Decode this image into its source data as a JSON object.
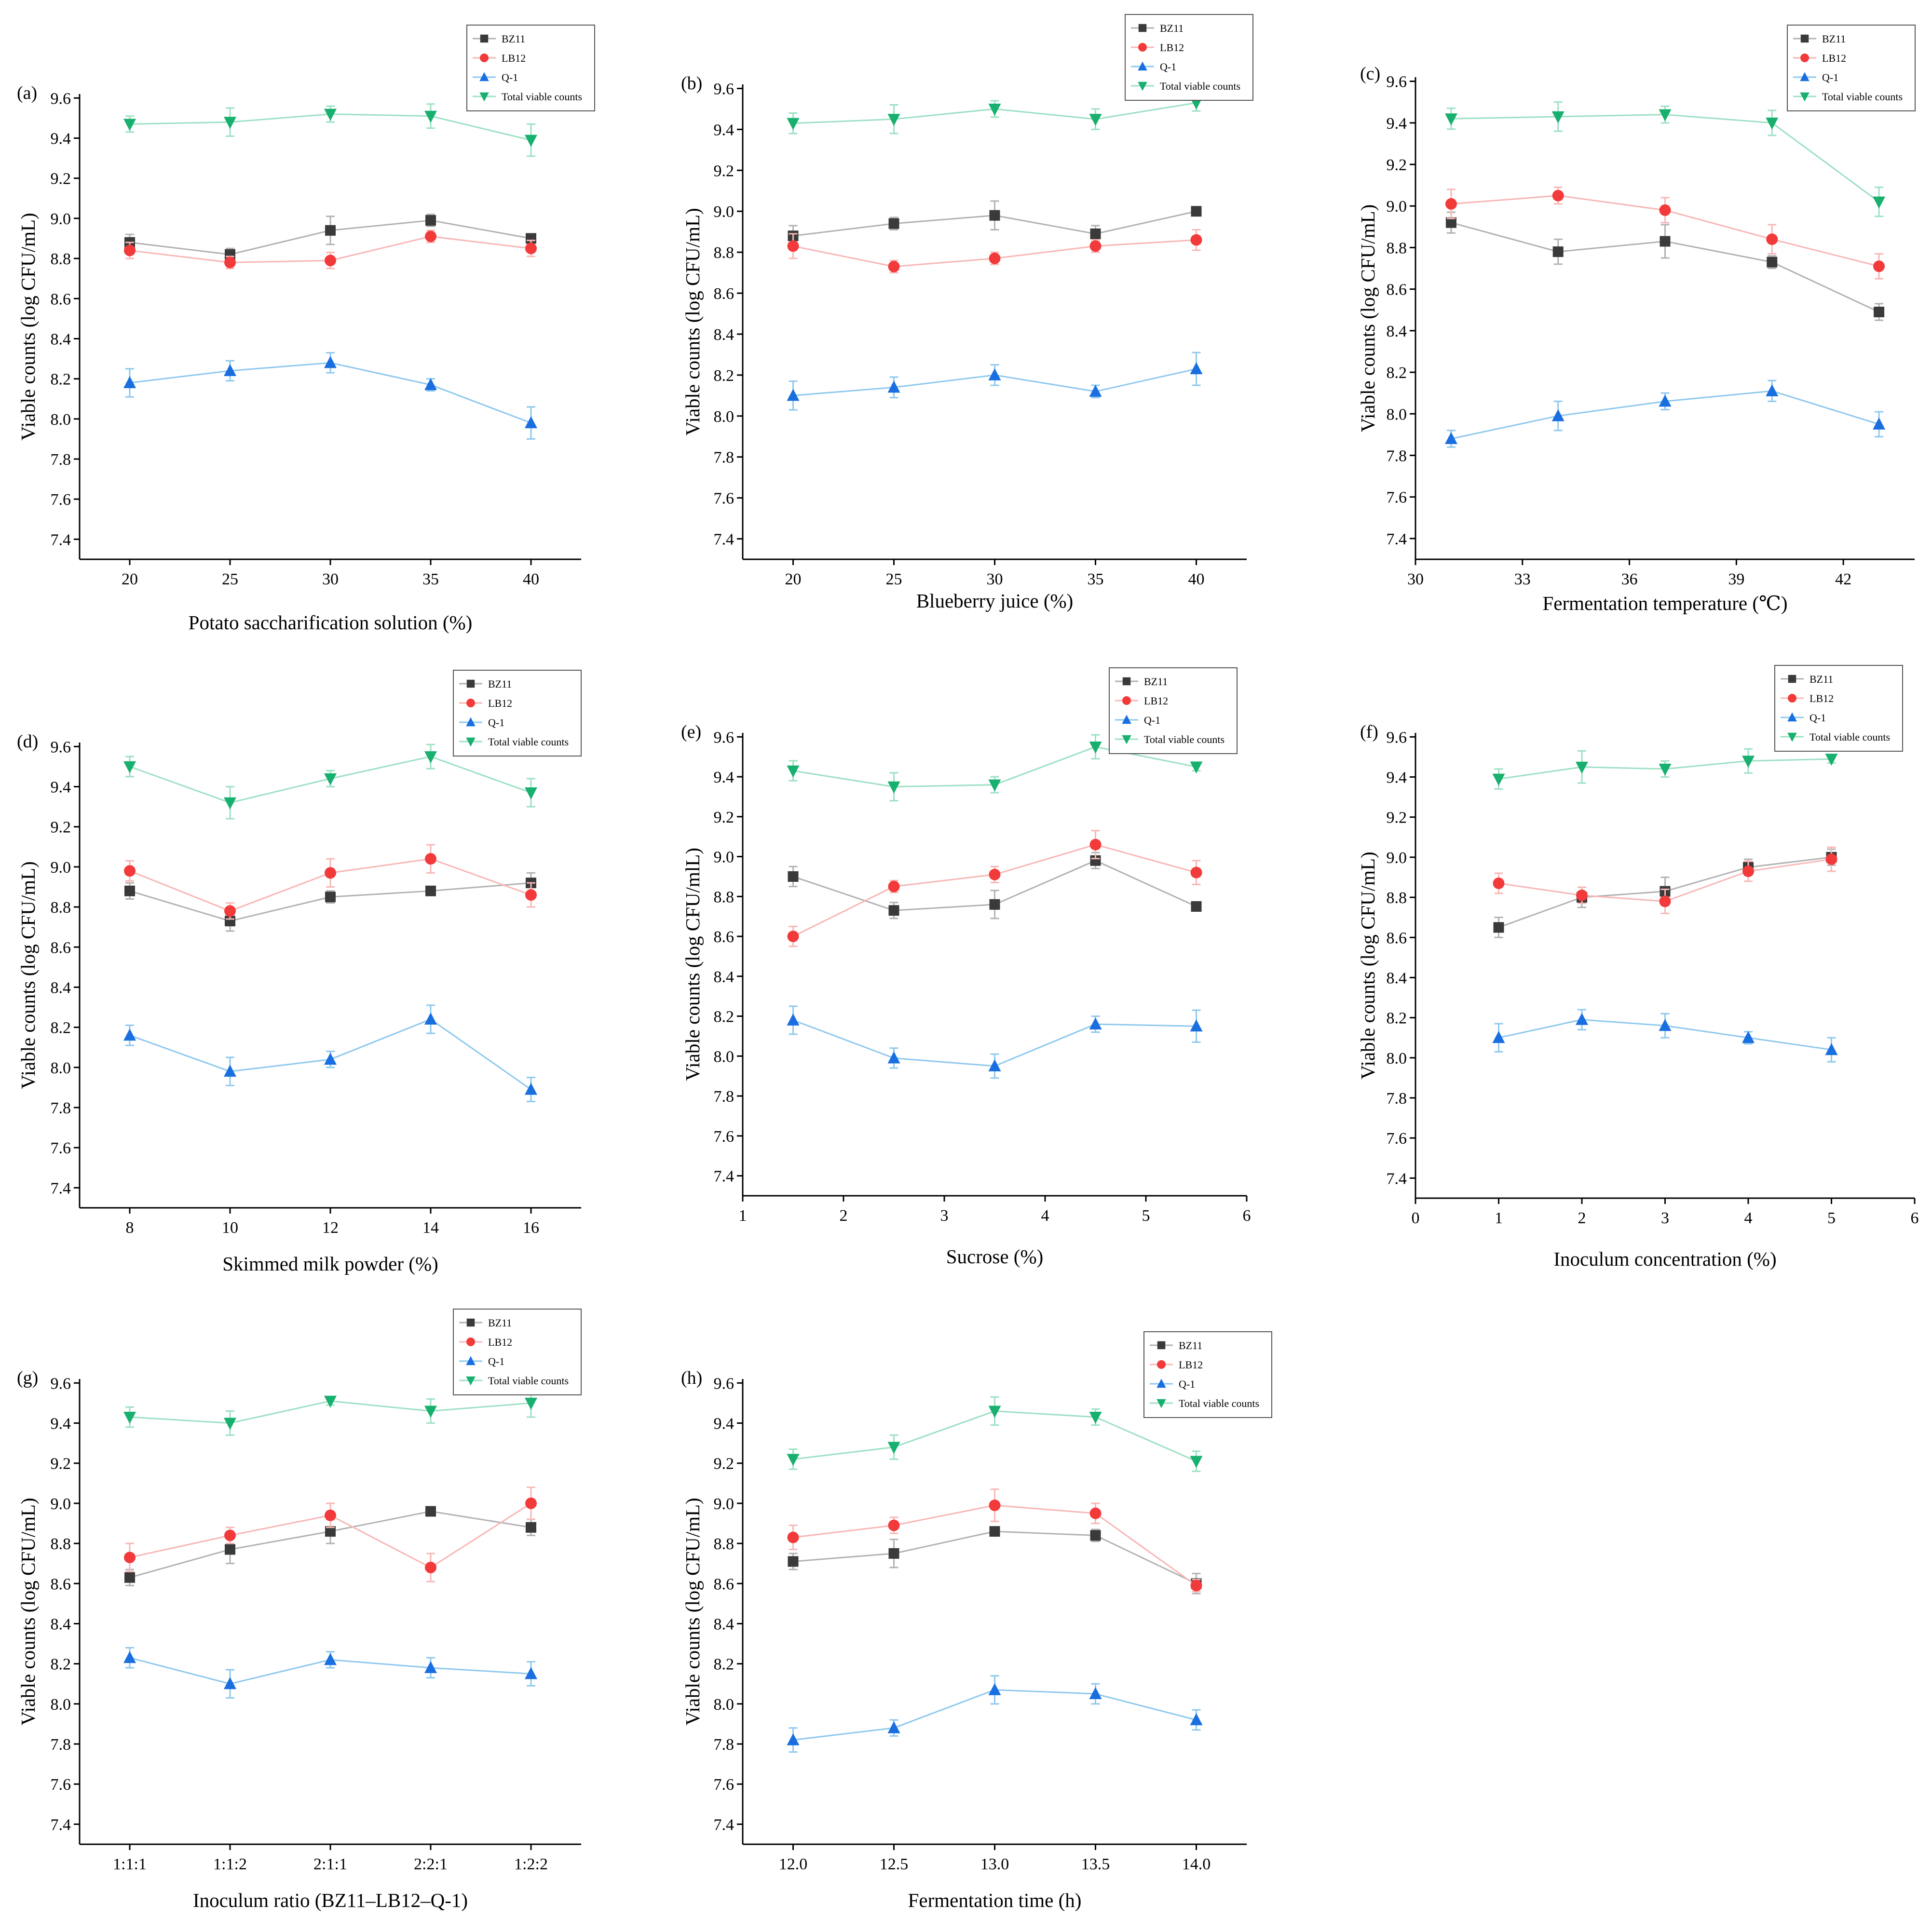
{
  "figure": {
    "title": "",
    "legend_names": [
      "BZ11",
      "LB12",
      "Q-1",
      "Total viable counts"
    ]
  },
  "colors": {
    "BZ11": {
      "line": "#b2b2b2",
      "marker": "#3a3a3a"
    },
    "LB12": {
      "line": "#f8b6b6",
      "marker": "#f23a3a"
    },
    "Q-1": {
      "line": "#8ec8ee",
      "marker": "#1a6fe0"
    },
    "Total viable counts": {
      "line": "#9de0c4",
      "marker": "#18b06e"
    }
  },
  "chart_data": [
    {
      "id": "a",
      "label": "(a)",
      "type": "line",
      "xlabel": "Potato saccharification solution (%)",
      "ylabel": "Viable counts (log CFU/mL)",
      "x_kind": "numeric",
      "x": [
        20,
        25,
        30,
        35,
        40
      ],
      "xlim": [
        17.5,
        42.5
      ],
      "xticks": [
        20,
        25,
        30,
        35,
        40
      ],
      "ylim": [
        7.3,
        9.62
      ],
      "yticks": [
        "7.4",
        "7.6",
        "7.8",
        "8.0",
        "8.2",
        "8.4",
        "8.6",
        "8.8",
        "9.0",
        "9.2",
        "9.4",
        "9.6"
      ],
      "series": [
        {
          "name": "BZ11",
          "marker": "square",
          "values": [
            8.88,
            8.82,
            8.94,
            8.99,
            8.9
          ],
          "errors": [
            0.04,
            0.03,
            0.07,
            0.03,
            0.02
          ]
        },
        {
          "name": "LB12",
          "marker": "circle",
          "values": [
            8.84,
            8.78,
            8.79,
            8.91,
            8.85
          ],
          "errors": [
            0.04,
            0.03,
            0.04,
            0.03,
            0.04
          ]
        },
        {
          "name": "Q-1",
          "marker": "triangle-up",
          "values": [
            8.18,
            8.24,
            8.28,
            8.17,
            7.98
          ],
          "errors": [
            0.07,
            0.05,
            0.05,
            0.03,
            0.08
          ]
        },
        {
          "name": "Total viable counts",
          "marker": "triangle-down",
          "values": [
            9.47,
            9.48,
            9.52,
            9.51,
            9.39
          ],
          "errors": [
            0.04,
            0.07,
            0.04,
            0.06,
            0.08
          ]
        }
      ]
    },
    {
      "id": "b",
      "label": "(b)",
      "type": "line",
      "xlabel": "Blueberry juice (%)",
      "ylabel": "Viable counts (log CFU/mL)",
      "x_kind": "numeric",
      "x": [
        20,
        25,
        30,
        35,
        40
      ],
      "xlim": [
        17.5,
        42.5
      ],
      "xticks": [
        20,
        25,
        30,
        35,
        40
      ],
      "ylim": [
        7.3,
        9.62
      ],
      "yticks": [
        "7.4",
        "7.6",
        "7.8",
        "8.0",
        "8.2",
        "8.4",
        "8.6",
        "8.8",
        "9.0",
        "9.2",
        "9.4",
        "9.6"
      ],
      "series": [
        {
          "name": "BZ11",
          "marker": "square",
          "values": [
            8.88,
            8.94,
            8.98,
            8.89,
            9.0
          ],
          "errors": [
            0.05,
            0.03,
            0.07,
            0.04,
            0.02
          ]
        },
        {
          "name": "LB12",
          "marker": "circle",
          "values": [
            8.83,
            8.73,
            8.77,
            8.83,
            8.86
          ],
          "errors": [
            0.06,
            0.03,
            0.03,
            0.03,
            0.05
          ]
        },
        {
          "name": "Q-1",
          "marker": "triangle-up",
          "values": [
            8.1,
            8.14,
            8.2,
            8.12,
            8.23
          ],
          "errors": [
            0.07,
            0.05,
            0.05,
            0.03,
            0.08
          ]
        },
        {
          "name": "Total viable counts",
          "marker": "triangle-down",
          "values": [
            9.43,
            9.45,
            9.5,
            9.45,
            9.53
          ],
          "errors": [
            0.05,
            0.07,
            0.04,
            0.05,
            0.04
          ]
        }
      ]
    },
    {
      "id": "c",
      "label": "(c)",
      "type": "line",
      "xlabel": "Fermentation temperature (℃)",
      "ylabel": "Viable counts (log CFU/mL)",
      "x_kind": "numeric",
      "x": [
        31,
        34,
        37,
        40,
        43
      ],
      "xlim": [
        30,
        44
      ],
      "xticks": [
        30,
        33,
        36,
        39,
        42
      ],
      "ylim": [
        7.3,
        9.62
      ],
      "yticks": [
        "7.4",
        "7.6",
        "7.8",
        "8.0",
        "8.2",
        "8.4",
        "8.6",
        "8.8",
        "9.0",
        "9.2",
        "9.4",
        "9.6"
      ],
      "series": [
        {
          "name": "BZ11",
          "marker": "square",
          "values": [
            8.92,
            8.78,
            8.83,
            8.73,
            8.49
          ],
          "errors": [
            0.05,
            0.06,
            0.08,
            0.03,
            0.04
          ]
        },
        {
          "name": "LB12",
          "marker": "circle",
          "values": [
            9.01,
            9.05,
            8.98,
            8.84,
            8.71
          ],
          "errors": [
            0.07,
            0.04,
            0.06,
            0.07,
            0.06
          ]
        },
        {
          "name": "Q-1",
          "marker": "triangle-up",
          "values": [
            7.88,
            7.99,
            8.06,
            8.11,
            7.95
          ],
          "errors": [
            0.04,
            0.07,
            0.04,
            0.05,
            0.06
          ]
        },
        {
          "name": "Total viable counts",
          "marker": "triangle-down",
          "values": [
            9.42,
            9.43,
            9.44,
            9.4,
            9.02
          ],
          "errors": [
            0.05,
            0.07,
            0.04,
            0.06,
            0.07
          ]
        }
      ]
    },
    {
      "id": "d",
      "label": "(d)",
      "type": "line",
      "xlabel": "Skimmed milk powder (%)",
      "ylabel": "Viable counts (log CFU/mL)",
      "x_kind": "numeric",
      "x": [
        8,
        10,
        12,
        14,
        16
      ],
      "xlim": [
        7,
        17
      ],
      "xticks": [
        8,
        10,
        12,
        14,
        16
      ],
      "ylim": [
        7.3,
        9.62
      ],
      "yticks": [
        "7.4",
        "7.6",
        "7.8",
        "8.0",
        "8.2",
        "8.4",
        "8.6",
        "8.8",
        "9.0",
        "9.2",
        "9.4",
        "9.6"
      ],
      "series": [
        {
          "name": "BZ11",
          "marker": "square",
          "values": [
            8.88,
            8.73,
            8.85,
            8.88,
            8.92
          ],
          "errors": [
            0.04,
            0.05,
            0.03,
            0.02,
            0.05
          ]
        },
        {
          "name": "LB12",
          "marker": "circle",
          "values": [
            8.98,
            8.78,
            8.97,
            9.04,
            8.86
          ],
          "errors": [
            0.05,
            0.04,
            0.07,
            0.07,
            0.06
          ]
        },
        {
          "name": "Q-1",
          "marker": "triangle-up",
          "values": [
            8.16,
            7.98,
            8.04,
            8.24,
            7.89
          ],
          "errors": [
            0.05,
            0.07,
            0.04,
            0.07,
            0.06
          ]
        },
        {
          "name": "Total viable counts",
          "marker": "triangle-down",
          "values": [
            9.5,
            9.32,
            9.44,
            9.55,
            9.37
          ],
          "errors": [
            0.05,
            0.08,
            0.04,
            0.06,
            0.07
          ]
        }
      ]
    },
    {
      "id": "e",
      "label": "(e)",
      "type": "line",
      "xlabel": "Sucrose (%)",
      "ylabel": "Viable counts (log CFU/mlL)",
      "x_kind": "numeric",
      "x": [
        1.5,
        2.5,
        3.5,
        4.5,
        5.5
      ],
      "xlim": [
        1,
        6
      ],
      "xticks": [
        1,
        2,
        3,
        4,
        5,
        6
      ],
      "ylim": [
        7.3,
        9.62
      ],
      "yticks": [
        "7.4",
        "7.6",
        "7.8",
        "8.0",
        "8.2",
        "8.4",
        "8.6",
        "8.8",
        "9.0",
        "9.2",
        "9.4",
        "9.6"
      ],
      "series": [
        {
          "name": "BZ11",
          "marker": "square",
          "values": [
            8.9,
            8.73,
            8.76,
            8.98,
            8.75
          ],
          "errors": [
            0.05,
            0.04,
            0.07,
            0.04,
            0.02
          ]
        },
        {
          "name": "LB12",
          "marker": "circle",
          "values": [
            8.6,
            8.85,
            8.91,
            9.06,
            8.92
          ],
          "errors": [
            0.05,
            0.03,
            0.04,
            0.07,
            0.06
          ]
        },
        {
          "name": "Q-1",
          "marker": "triangle-up",
          "values": [
            8.18,
            7.99,
            7.95,
            8.16,
            8.15
          ],
          "errors": [
            0.07,
            0.05,
            0.06,
            0.04,
            0.08
          ]
        },
        {
          "name": "Total viable counts",
          "marker": "triangle-down",
          "values": [
            9.43,
            9.35,
            9.36,
            9.55,
            9.45
          ],
          "errors": [
            0.05,
            0.07,
            0.04,
            0.06,
            0.02
          ]
        }
      ]
    },
    {
      "id": "f",
      "label": "(f)",
      "type": "line",
      "xlabel": "Inoculum concentration (%)",
      "ylabel": "Viable counts (log CFU/mL)",
      "x_kind": "numeric",
      "x": [
        1,
        2,
        3,
        4,
        5
      ],
      "xlim": [
        0,
        6
      ],
      "xticks": [
        0,
        1,
        2,
        3,
        4,
        5,
        6
      ],
      "ylim": [
        7.3,
        9.62
      ],
      "yticks": [
        "7.4",
        "7.6",
        "7.8",
        "8.0",
        "8.2",
        "8.4",
        "8.6",
        "8.8",
        "9.0",
        "9.2",
        "9.4",
        "9.6"
      ],
      "series": [
        {
          "name": "BZ11",
          "marker": "square",
          "values": [
            8.65,
            8.8,
            8.83,
            8.95,
            9.0
          ],
          "errors": [
            0.05,
            0.05,
            0.07,
            0.04,
            0.04
          ]
        },
        {
          "name": "LB12",
          "marker": "circle",
          "values": [
            8.87,
            8.81,
            8.78,
            8.93,
            8.99
          ],
          "errors": [
            0.05,
            0.04,
            0.06,
            0.05,
            0.06
          ]
        },
        {
          "name": "Q-1",
          "marker": "triangle-up",
          "values": [
            8.1,
            8.19,
            8.16,
            8.1,
            8.04
          ],
          "errors": [
            0.07,
            0.05,
            0.06,
            0.03,
            0.06
          ]
        },
        {
          "name": "Total viable counts",
          "marker": "triangle-down",
          "values": [
            9.39,
            9.45,
            9.44,
            9.48,
            9.49
          ],
          "errors": [
            0.05,
            0.08,
            0.04,
            0.06,
            0.02
          ]
        }
      ]
    },
    {
      "id": "g",
      "label": "(g)",
      "type": "line",
      "xlabel": "Inoculum ratio (BZ11–LB12–Q-1)",
      "ylabel": "Viable counts (log CFU/mL)",
      "x_kind": "categorical",
      "categories": [
        "1:1:1",
        "1:1:2",
        "2:1:1",
        "2:2:1",
        "1:2:2"
      ],
      "ylim": [
        7.3,
        9.62
      ],
      "yticks": [
        "7.4",
        "7.6",
        "7.8",
        "8.0",
        "8.2",
        "8.4",
        "8.6",
        "8.8",
        "9.0",
        "9.2",
        "9.4",
        "9.6"
      ],
      "series": [
        {
          "name": "BZ11",
          "marker": "square",
          "values": [
            8.63,
            8.77,
            8.86,
            8.96,
            8.88
          ],
          "errors": [
            0.04,
            0.07,
            0.06,
            0.02,
            0.04
          ]
        },
        {
          "name": "LB12",
          "marker": "circle",
          "values": [
            8.73,
            8.84,
            8.94,
            8.68,
            9.0
          ],
          "errors": [
            0.07,
            0.04,
            0.06,
            0.07,
            0.08
          ]
        },
        {
          "name": "Q-1",
          "marker": "triangle-up",
          "values": [
            8.23,
            8.1,
            8.22,
            8.18,
            8.15
          ],
          "errors": [
            0.05,
            0.07,
            0.04,
            0.05,
            0.06
          ]
        },
        {
          "name": "Total viable counts",
          "marker": "triangle-down",
          "values": [
            9.43,
            9.4,
            9.51,
            9.46,
            9.5
          ],
          "errors": [
            0.05,
            0.06,
            0.02,
            0.06,
            0.07
          ]
        }
      ]
    },
    {
      "id": "h",
      "label": "(h)",
      "type": "line",
      "xlabel": "Fermentation time (h)",
      "ylabel": "Viable counts (log CFU/mL)",
      "x_kind": "numeric",
      "x": [
        12.0,
        12.5,
        13.0,
        13.5,
        14.0
      ],
      "xlim": [
        11.75,
        14.25
      ],
      "xticks": [
        "12.0",
        "12.5",
        "13.0",
        "13.5",
        "14.0"
      ],
      "ylim": [
        7.3,
        9.62
      ],
      "yticks": [
        "7.4",
        "7.6",
        "7.8",
        "8.0",
        "8.2",
        "8.4",
        "8.6",
        "8.8",
        "9.0",
        "9.2",
        "9.4",
        "9.6"
      ],
      "series": [
        {
          "name": "BZ11",
          "marker": "square",
          "values": [
            8.71,
            8.75,
            8.86,
            8.84,
            8.6
          ],
          "errors": [
            0.04,
            0.07,
            0.02,
            0.03,
            0.05
          ]
        },
        {
          "name": "LB12",
          "marker": "circle",
          "values": [
            8.83,
            8.89,
            8.99,
            8.95,
            8.59
          ],
          "errors": [
            0.06,
            0.04,
            0.08,
            0.05,
            0.03
          ]
        },
        {
          "name": "Q-1",
          "marker": "triangle-up",
          "values": [
            7.82,
            7.88,
            8.07,
            8.05,
            7.92
          ],
          "errors": [
            0.06,
            0.04,
            0.07,
            0.05,
            0.05
          ]
        },
        {
          "name": "Total viable counts",
          "marker": "triangle-down",
          "values": [
            9.22,
            9.28,
            9.46,
            9.43,
            9.21
          ],
          "errors": [
            0.05,
            0.06,
            0.07,
            0.04,
            0.05
          ]
        }
      ]
    }
  ]
}
